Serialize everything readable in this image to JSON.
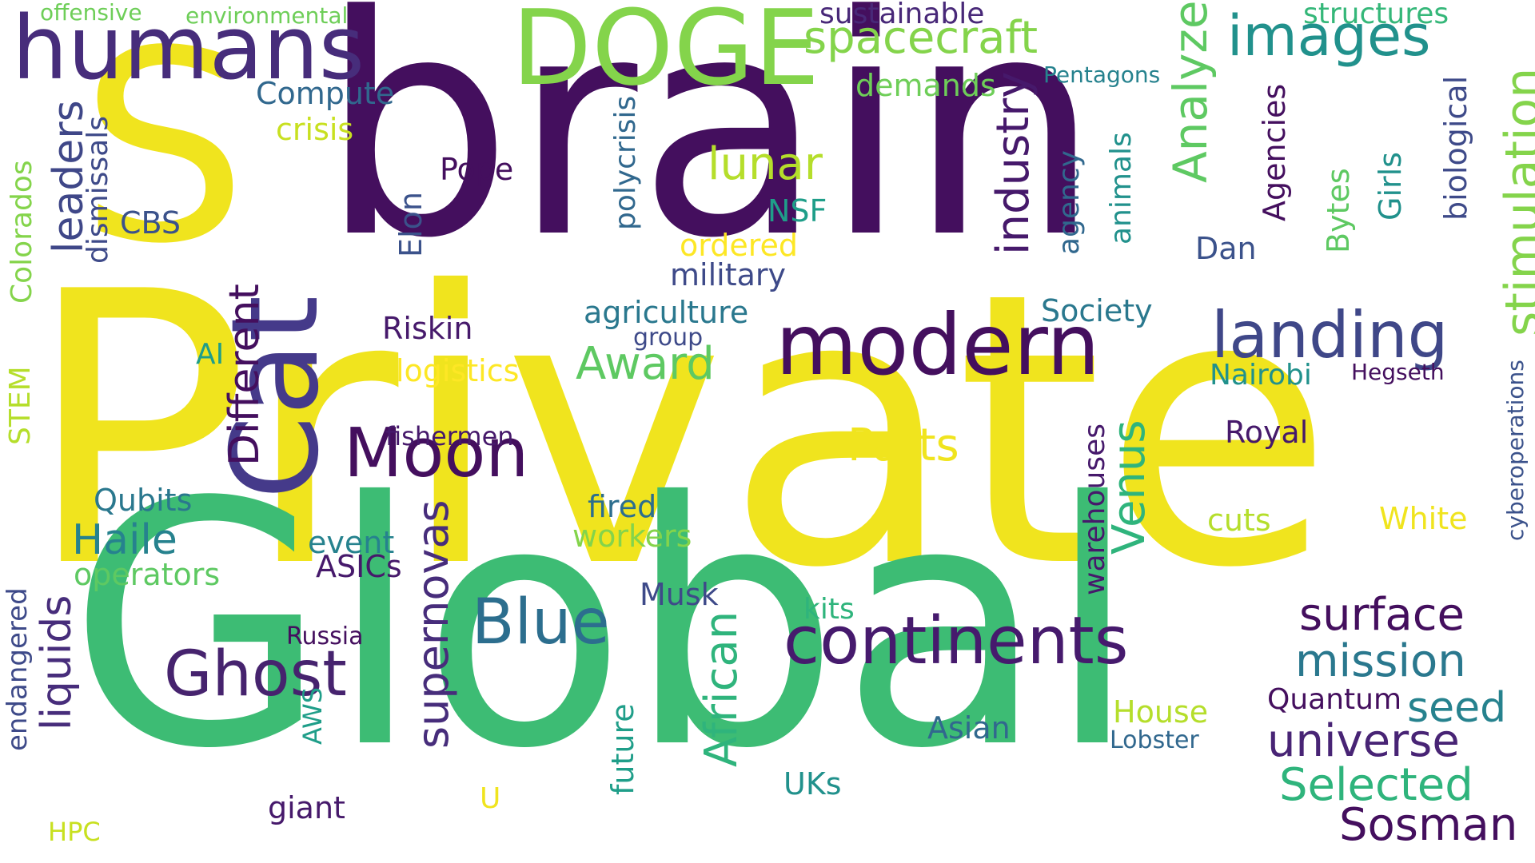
{
  "palette": {
    "dark_purple": "#440154",
    "indigo": "#482878",
    "slate_blue": "#3e4a89",
    "steel_blue": "#31688e",
    "teal": "#26828e",
    "green_teal": "#1f9e89",
    "green": "#35b779",
    "lime": "#6ece58",
    "yellow_green": "#b5de2b",
    "yellow": "#fde725"
  },
  "words": {
    "private": {
      "text": "Private",
      "color": "#f0e41e"
    },
    "global": {
      "text": "Global",
      "color": "#3dbc74"
    },
    "brain": {
      "text": "brain",
      "color": "#440f5e"
    },
    "s": {
      "text": "S",
      "color": "#f0e41e"
    },
    "cat": {
      "text": "Cat",
      "color": "#453a8a"
    },
    "doge": {
      "text": "DOGE",
      "color": "#84d44b"
    },
    "humans": {
      "text": "humans",
      "color": "#472d7b"
    },
    "modern": {
      "text": "modern",
      "color": "#440f5e"
    },
    "moon": {
      "text": "Moon",
      "color": "#440f5e"
    },
    "continents": {
      "text": "continents",
      "color": "#461a6d"
    },
    "landing": {
      "text": "landing",
      "color": "#3f4788"
    },
    "blue": {
      "text": "Blue",
      "color": "#2c6e8e"
    },
    "ghost": {
      "text": "Ghost",
      "color": "#46236e"
    },
    "images": {
      "text": "images",
      "color": "#21918c"
    },
    "spacecraft": {
      "text": "spacecraft",
      "color": "#84d44b"
    },
    "stimulation": {
      "text": "stimulation",
      "color": "#84d44b"
    },
    "analyze": {
      "text": "Analyze",
      "color": "#5ec962"
    },
    "industry": {
      "text": "industry",
      "color": "#46196b"
    },
    "african": {
      "text": "African",
      "color": "#2fb47c"
    },
    "venus": {
      "text": "Venus",
      "color": "#2fb47c"
    },
    "supernovas": {
      "text": "supernovas",
      "color": "#472d7b"
    },
    "different": {
      "text": "Different",
      "color": "#440f5e"
    },
    "leaders": {
      "text": "leaders",
      "color": "#3f4788"
    },
    "liquids": {
      "text": "liquids",
      "color": "#472d7b"
    },
    "surface": {
      "text": "surface",
      "color": "#440f5e"
    },
    "mission": {
      "text": "mission",
      "color": "#2a788e"
    },
    "universe": {
      "text": "universe",
      "color": "#482475"
    },
    "selected": {
      "text": "Selected",
      "color": "#2fb47c"
    },
    "sosman": {
      "text": "Sosman",
      "color": "#440f5e"
    },
    "seed": {
      "text": "seed",
      "color": "#26828e"
    },
    "haile": {
      "text": "Haile",
      "color": "#26828e"
    },
    "lunar": {
      "text": "lunar",
      "color": "#b5de2b"
    },
    "parts": {
      "text": "Parts",
      "color": "#f0e41e"
    },
    "award": {
      "text": "Award",
      "color": "#5ec962"
    },
    "sustainable": {
      "text": "sustainable",
      "color": "#482878"
    },
    "structures": {
      "text": "structures",
      "color": "#35b779"
    },
    "offensive": {
      "text": "offensive",
      "color": "#6ece58"
    },
    "environmental": {
      "text": "environmental",
      "color": "#6ece58"
    },
    "compute": {
      "text": "Compute",
      "color": "#31688e"
    },
    "crisis": {
      "text": "crisis",
      "color": "#c8e020"
    },
    "demands": {
      "text": "demands",
      "color": "#6ece58"
    },
    "pentagons": {
      "text": "Pentagons",
      "color": "#26828e"
    },
    "pope": {
      "text": "Pope",
      "color": "#440f5e"
    },
    "cbs": {
      "text": "CBS",
      "color": "#3b528b"
    },
    "elon": {
      "text": "Elon",
      "color": "#3b528b"
    },
    "nsf": {
      "text": "NSF",
      "color": "#1f9e89"
    },
    "ordered": {
      "text": "ordered",
      "color": "#fde725"
    },
    "military": {
      "text": "military",
      "color": "#3e4a89"
    },
    "polycrisis": {
      "text": "polycrisis",
      "color": "#31688e"
    },
    "agriculture": {
      "text": "agriculture",
      "color": "#2a788e"
    },
    "group": {
      "text": "group",
      "color": "#3e4a89"
    },
    "riskin": {
      "text": "Riskin",
      "color": "#46196b"
    },
    "ai": {
      "text": "AI",
      "color": "#1f9e89"
    },
    "logistics": {
      "text": "logistics",
      "color": "#fde725"
    },
    "agency": {
      "text": "agency",
      "color": "#31688e"
    },
    "animals": {
      "text": "animals",
      "color": "#21918c"
    },
    "agencies": {
      "text": "Agencies",
      "color": "#440f5e"
    },
    "dan": {
      "text": "Dan",
      "color": "#3b528b"
    },
    "bytes": {
      "text": "Bytes",
      "color": "#5ec962"
    },
    "girls": {
      "text": "Girls",
      "color": "#21918c"
    },
    "biological": {
      "text": "biological",
      "color": "#3e4a89"
    },
    "society": {
      "text": "Society",
      "color": "#2a788e"
    },
    "nairobi": {
      "text": "Nairobi",
      "color": "#21918c"
    },
    "hegseth": {
      "text": "Hegseth",
      "color": "#440f5e"
    },
    "cyberoperations": {
      "text": "cyberoperations",
      "color": "#3b528b"
    },
    "colorados": {
      "text": "Colorados",
      "color": "#84d44b"
    },
    "dismissals": {
      "text": "dismissals",
      "color": "#3e4a89"
    },
    "stem": {
      "text": "STEM",
      "color": "#b5de2b"
    },
    "fishermen": {
      "text": "fishermen",
      "color": "#46196b"
    },
    "royal": {
      "text": "Royal",
      "color": "#46196b"
    },
    "qubits": {
      "text": "Qubits",
      "color": "#2a788e"
    },
    "fired": {
      "text": "fired",
      "color": "#2c6e8e"
    },
    "workers": {
      "text": "workers",
      "color": "#84d44b"
    },
    "event": {
      "text": "event",
      "color": "#26828e"
    },
    "operators": {
      "text": "operators",
      "color": "#5ec962"
    },
    "asics": {
      "text": "ASICs",
      "color": "#46196b"
    },
    "warehouses": {
      "text": "warehouses",
      "color": "#46196b"
    },
    "cuts": {
      "text": "cuts",
      "color": "#b5de2b"
    },
    "white": {
      "text": "White",
      "color": "#f0e41e"
    },
    "musk": {
      "text": "Musk",
      "color": "#3e4a89"
    },
    "kits": {
      "text": "kits",
      "color": "#2fb47c"
    },
    "russia": {
      "text": "Russia",
      "color": "#440f5e"
    },
    "endangered": {
      "text": "endangered",
      "color": "#3e4a89"
    },
    "aws": {
      "text": "AWS",
      "color": "#1f9e89"
    },
    "house": {
      "text": "House",
      "color": "#b5de2b"
    },
    "quantum": {
      "text": "Quantum",
      "color": "#440f5e"
    },
    "lobster": {
      "text": "Lobster",
      "color": "#31688e"
    },
    "asian": {
      "text": "Asian",
      "color": "#31688e"
    },
    "future": {
      "text": "future",
      "color": "#1f9e89"
    },
    "u": {
      "text": "U",
      "color": "#f0e41e"
    },
    "giant": {
      "text": "giant",
      "color": "#46196b"
    },
    "hpc": {
      "text": "HPC",
      "color": "#c8e020"
    },
    "uks": {
      "text": "UKs",
      "color": "#21918c"
    }
  }
}
